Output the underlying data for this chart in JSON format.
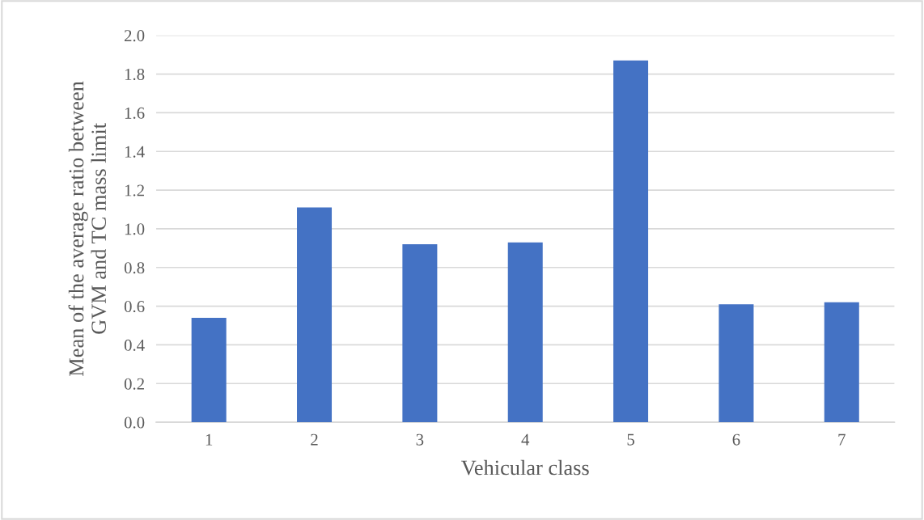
{
  "chart_data": {
    "type": "bar",
    "xlabel": "Vehicular class",
    "ylabel": "Mean of the average ratio between\nGVM and TC mass limit",
    "categories": [
      "1",
      "2",
      "3",
      "4",
      "5",
      "6",
      "7"
    ],
    "values": [
      0.54,
      1.11,
      0.92,
      0.93,
      1.87,
      0.61,
      0.62
    ],
    "color": "#4472c4",
    "ylim": [
      0,
      2
    ],
    "yticks": [
      {
        "value": 0,
        "label": "0.0"
      },
      {
        "value": 0.2,
        "label": "0.2"
      },
      {
        "value": 0.4,
        "label": "0.4"
      },
      {
        "value": 0.6,
        "label": "0.6"
      },
      {
        "value": 0.8,
        "label": "0.8"
      },
      {
        "value": 1,
        "label": "1.0"
      },
      {
        "value": 1.2,
        "label": "1.2"
      },
      {
        "value": 1.4,
        "label": "1.4"
      },
      {
        "value": 1.6,
        "label": "1.6"
      },
      {
        "value": 1.8,
        "label": "1.8"
      },
      {
        "value": 2,
        "label": "2.0"
      }
    ],
    "grid": "y"
  }
}
